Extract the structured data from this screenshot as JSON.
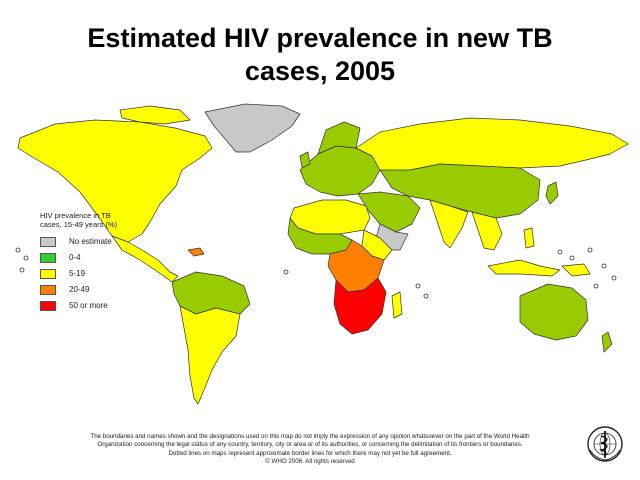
{
  "title": {
    "line1": "Estimated HIV prevalence in new TB",
    "line2": "cases, 2005"
  },
  "legend": {
    "title_line1": "HIV prevalence in TB",
    "title_line2": "cases, 15-49 years (%)",
    "items": [
      {
        "label": "No estimate",
        "color": "#c8c8c8"
      },
      {
        "label": "0-4",
        "color": "#33cc33"
      },
      {
        "label": "5-19",
        "color": "#ffff00"
      },
      {
        "label": "20-49",
        "color": "#ff8000"
      },
      {
        "label": "50 or more",
        "color": "#ff0000"
      }
    ]
  },
  "map_colors": {
    "green": "#99cc00",
    "yellow": "#ffff00",
    "orange": "#ff8000",
    "red": "#ff0000",
    "grey": "#c8c8c8",
    "outline": "#333333"
  },
  "disclaimer": {
    "line1": "The boundaries and names shown and the designations used on this map do not imply the expression of any opinion whatsoever on the part of the World Health",
    "line2": "Organization concerning the legal status of any country, territory, city or area or of its authorities, or concerning the delimitation of its frontiers or boundaries.",
    "line3": "Dotted lines on maps represent approximate border lines for which there may not yet be full agreement.",
    "line4": "© WHO 2006. All rights reserved"
  },
  "emblem": {
    "icon": "who-emblem-icon"
  }
}
